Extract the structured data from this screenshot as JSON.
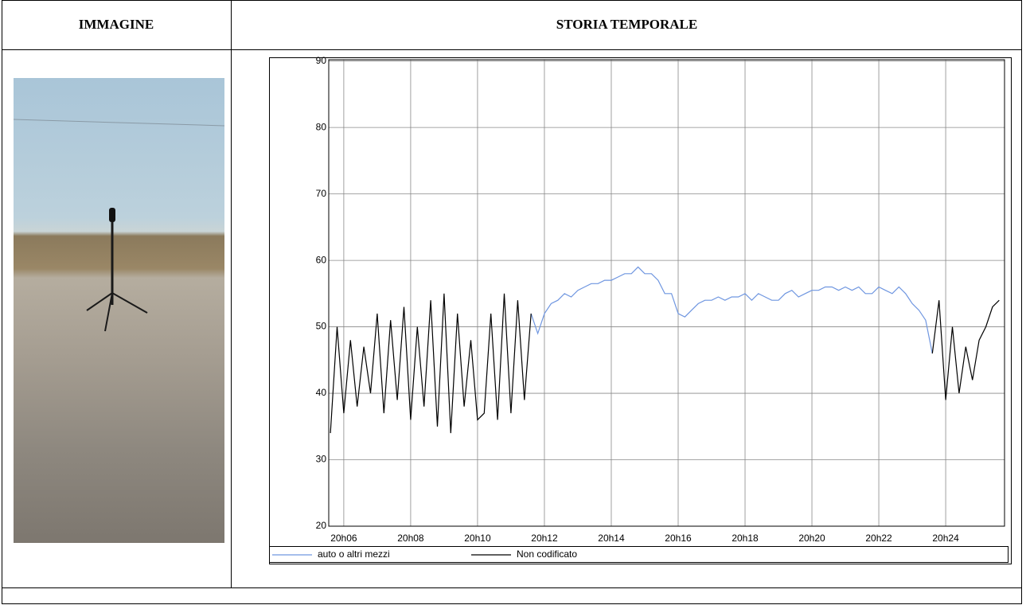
{
  "table": {
    "headers": [
      "IMMAGINE",
      "STORIA TEMPORALE"
    ]
  },
  "chart_data": {
    "type": "line",
    "x": [
      1205.6,
      1205.8,
      1206,
      1206.2,
      1206.4,
      1206.6,
      1206.8,
      1207,
      1207.2,
      1207.4,
      1207.6,
      1207.8,
      1208,
      1208.2,
      1208.4,
      1208.6,
      1208.8,
      1209,
      1209.2,
      1209.4,
      1209.6,
      1209.8,
      1210,
      1210.2,
      1210.4,
      1210.6,
      1210.8,
      1211,
      1211.2,
      1211.4,
      1211.6,
      1211.8,
      1212,
      1212.2,
      1212.4,
      1212.6,
      1212.8,
      1213,
      1213.2,
      1213.4,
      1213.6,
      1213.8,
      1214,
      1214.2,
      1214.4,
      1214.6,
      1214.8,
      1215,
      1215.2,
      1215.4,
      1215.6,
      1215.8,
      1216,
      1216.2,
      1216.4,
      1216.6,
      1216.8,
      1217,
      1217.2,
      1217.4,
      1217.6,
      1217.8,
      1218,
      1218.2,
      1218.4,
      1218.6,
      1218.8,
      1219,
      1219.2,
      1219.4,
      1219.6,
      1219.8,
      1220,
      1220.2,
      1220.4,
      1220.6,
      1220.8,
      1221,
      1221.2,
      1221.4,
      1221.6,
      1221.8,
      1222,
      1222.2,
      1222.4,
      1222.6,
      1222.8,
      1223,
      1223.2,
      1223.4,
      1223.6,
      1223.8,
      1224,
      1224.2,
      1224.4,
      1224.6,
      1224.8,
      1225,
      1225.2,
      1225.4,
      1225.6
    ],
    "series": [
      {
        "name": "auto o altri mezzi",
        "color": "#6f96e0",
        "values": [
          null,
          null,
          null,
          null,
          null,
          null,
          null,
          null,
          null,
          null,
          null,
          null,
          null,
          null,
          null,
          null,
          null,
          null,
          null,
          null,
          null,
          null,
          null,
          null,
          null,
          null,
          null,
          null,
          null,
          null,
          52,
          49,
          52,
          53.5,
          54,
          55,
          54.5,
          55.5,
          56,
          56.5,
          56.5,
          57,
          57,
          57.5,
          58,
          58,
          59,
          58,
          58,
          57,
          55,
          55,
          52,
          51.5,
          52.5,
          53.5,
          54,
          54,
          54.5,
          54,
          54.5,
          54.5,
          55,
          54,
          55,
          54.5,
          54,
          54,
          55,
          55.5,
          54.5,
          55,
          55.5,
          55.5,
          56,
          56,
          55.5,
          56,
          55.5,
          56,
          55,
          55,
          56,
          55.5,
          55,
          56,
          55,
          53.5,
          52.5,
          51,
          46,
          null,
          null,
          null,
          null,
          null,
          null,
          null,
          null,
          null,
          null
        ]
      },
      {
        "name": "Non codificato",
        "color": "#000000",
        "values": [
          34,
          50,
          37,
          48,
          38,
          47,
          40,
          52,
          37,
          51,
          39,
          53,
          36,
          50,
          38,
          54,
          35,
          55,
          34,
          52,
          38,
          48,
          36,
          37,
          52,
          36,
          55,
          37,
          54,
          39,
          52,
          null,
          null,
          null,
          null,
          null,
          null,
          null,
          null,
          null,
          null,
          null,
          null,
          null,
          null,
          null,
          null,
          null,
          null,
          null,
          null,
          null,
          null,
          null,
          null,
          null,
          null,
          null,
          null,
          null,
          null,
          null,
          null,
          null,
          null,
          null,
          null,
          null,
          null,
          null,
          null,
          null,
          null,
          null,
          null,
          null,
          null,
          null,
          null,
          null,
          null,
          null,
          null,
          null,
          null,
          null,
          null,
          null,
          null,
          null,
          46,
          54,
          39,
          50,
          40,
          47,
          42,
          48,
          50,
          53,
          54
        ]
      }
    ],
    "xlim": [
      1205.55,
      1225.76
    ],
    "xticks": [
      {
        "value": 1206,
        "label": "20h06"
      },
      {
        "value": 1208,
        "label": "20h08"
      },
      {
        "value": 1210,
        "label": "20h10"
      },
      {
        "value": 1212,
        "label": "20h12"
      },
      {
        "value": 1214,
        "label": "20h14"
      },
      {
        "value": 1216,
        "label": "20h16"
      },
      {
        "value": 1218,
        "label": "20h18"
      },
      {
        "value": 1220,
        "label": "20h20"
      },
      {
        "value": 1222,
        "label": "20h22"
      },
      {
        "value": 1224,
        "label": "20h24"
      }
    ],
    "ylim": [
      20,
      90.2
    ],
    "yticks": [
      20,
      30,
      40,
      50,
      60,
      70,
      80,
      90
    ],
    "grid": true
  }
}
